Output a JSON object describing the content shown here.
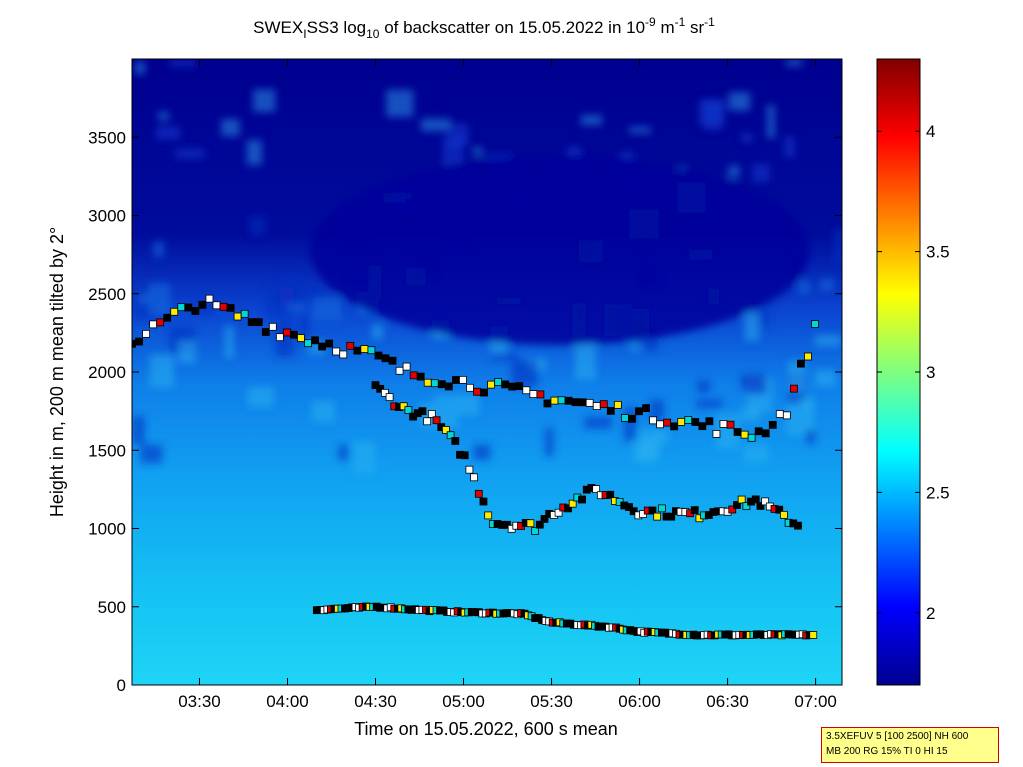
{
  "chart_data": {
    "type": "heatmap",
    "title": {
      "t1": "SWEX",
      "t1_sub": "I",
      "t2": "SS3 log",
      "t2_sub": "10",
      "t3": " of backscatter on 15.05.2022 in 10",
      "t3_sup": "-9",
      "t4": " m",
      "t4_sup": "-1",
      "t5": " sr",
      "t5_sup": "-1"
    },
    "xlabel": "Time on 15.05.2022, 600 s mean",
    "ylabel": "Height in m, 200 m mean tilted by 2°",
    "x_ticks": [
      "03:30",
      "04:00",
      "04:30",
      "05:00",
      "05:30",
      "06:00",
      "06:30",
      "07:00"
    ],
    "y_ticks": [
      "0",
      "500",
      "1000",
      "1500",
      "2000",
      "2500",
      "3000",
      "3500"
    ],
    "x_range": [
      "03:07",
      "07:09"
    ],
    "y_range": [
      0,
      4000
    ],
    "colorbar": {
      "ticks": [
        "2",
        "2.5",
        "3",
        "3.5",
        "4"
      ],
      "range": [
        1.7,
        4.3
      ],
      "colormap": "jet"
    },
    "layers": {
      "boundary_layer": [
        {
          "time": "04:10",
          "height": 480
        },
        {
          "time": "04:20",
          "height": 490
        },
        {
          "time": "04:30",
          "height": 500
        },
        {
          "time": "04:45",
          "height": 480
        },
        {
          "time": "05:00",
          "height": 465
        },
        {
          "time": "05:20",
          "height": 455
        },
        {
          "time": "05:30",
          "height": 400
        },
        {
          "time": "05:50",
          "height": 370
        },
        {
          "time": "06:00",
          "height": 340
        },
        {
          "time": "06:20",
          "height": 320
        },
        {
          "time": "07:00",
          "height": 320
        }
      ],
      "mid_layer": [
        {
          "time": "04:30",
          "height": 1900
        },
        {
          "time": "04:40",
          "height": 1760
        },
        {
          "time": "04:50",
          "height": 1700
        },
        {
          "time": "05:00",
          "height": 1470
        },
        {
          "time": "05:10",
          "height": 1040
        },
        {
          "time": "05:25",
          "height": 1010
        },
        {
          "time": "05:30",
          "height": 1100
        },
        {
          "time": "05:45",
          "height": 1250
        },
        {
          "time": "06:00",
          "height": 1110
        },
        {
          "time": "06:20",
          "height": 1090
        },
        {
          "time": "06:40",
          "height": 1180
        },
        {
          "time": "06:55",
          "height": 1010
        }
      ],
      "upper_layer": [
        {
          "time": "03:07",
          "height": 2200
        },
        {
          "time": "03:30",
          "height": 2450
        },
        {
          "time": "04:00",
          "height": 2250
        },
        {
          "time": "04:30",
          "height": 2100
        },
        {
          "time": "04:40",
          "height": 2000
        },
        {
          "time": "06:40",
          "height": 1600
        },
        {
          "time": "06:50",
          "height": 1750
        },
        {
          "time": "07:00",
          "height": 2280
        }
      ]
    }
  },
  "info_box": {
    "line1": "3.5XEFUV 5 [100 2500] NH 600",
    "line2": "MB 200 RG 15% TI 0 HI 15"
  }
}
